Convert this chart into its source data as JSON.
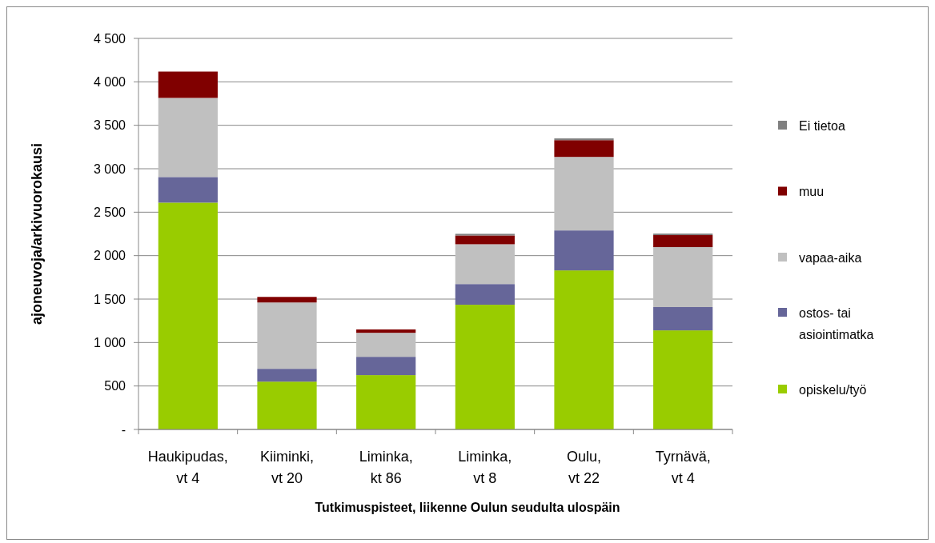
{
  "chart_data": {
    "type": "bar",
    "stacked": true,
    "xlabel": "Tutkimuspisteet, liikenne Oulun seudulta ulospäin",
    "ylabel": "ajoneuvoja/arkivuorokausi",
    "categories": [
      "Haukipudas, vt 4",
      "Kiiminki, vt 20",
      "Liminka, kt 86",
      "Liminka, vt 8",
      "Oulu, vt 22",
      "Tyrnävä, vt 4"
    ],
    "series": [
      {
        "name": "opiskelu/työ",
        "color": "#99cc00",
        "values": [
          2610,
          550,
          625,
          1435,
          1830,
          1140
        ]
      },
      {
        "name": "ostos- tai asiointimatka",
        "color": "#666699",
        "values": [
          295,
          148,
          211,
          238,
          460,
          268
        ]
      },
      {
        "name": "vapaa-aika",
        "color": "#c0c0c0",
        "values": [
          910,
          763,
          276,
          458,
          846,
          690
        ]
      },
      {
        "name": "muu",
        "color": "#800000",
        "values": [
          303,
          64,
          39,
          101,
          193,
          138
        ]
      },
      {
        "name": "Ei tietoa",
        "color": "#808080",
        "values": [
          0,
          0,
          0,
          19,
          20,
          18
        ]
      }
    ],
    "ylim": [
      0,
      4500
    ],
    "yticks": [
      {
        "value": 0,
        "label": "-"
      },
      500,
      {
        "value": 1000,
        "label": "1 000"
      },
      {
        "value": 1500,
        "label": "1 500"
      },
      {
        "value": 2000,
        "label": "2 000"
      },
      {
        "value": 2500,
        "label": "2 500"
      },
      {
        "value": 3000,
        "label": "3 000"
      },
      {
        "value": 3500,
        "label": "3 500"
      },
      {
        "value": 4000,
        "label": "4 000"
      },
      {
        "value": 4500,
        "label": "4 500"
      }
    ],
    "grid": "y",
    "legend": "right"
  }
}
